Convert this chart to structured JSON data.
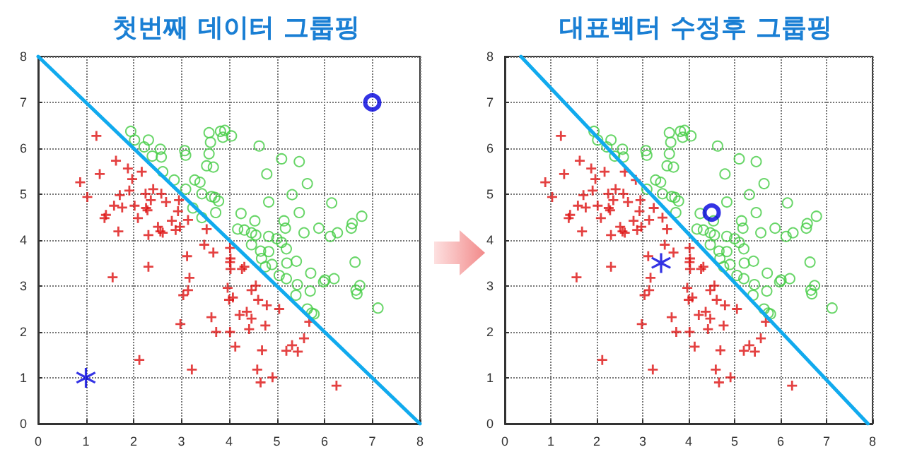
{
  "chart_data": [
    {
      "type": "scatter",
      "title": "첫번째 데이터 그룹핑",
      "xlim": [
        0,
        8
      ],
      "ylim": [
        0,
        8
      ],
      "xticks": [
        0,
        1,
        2,
        3,
        4,
        5,
        6,
        7,
        8
      ],
      "yticks": [
        0,
        1,
        2,
        3,
        4,
        5,
        6,
        7,
        8
      ],
      "grid": true,
      "series": [
        {
          "type": "scatter",
          "marker": "cross",
          "color": "#dd1111",
          "x": [
            1.22,
            1.63,
            1.29,
            1.88,
            0.88,
            1.03,
            2.17,
            1.97,
            1.91,
            1.71,
            1.59,
            1.76,
            1.42,
            1.39,
            2.02,
            2.25,
            2.41,
            2.58,
            2.36,
            2.26,
            2.09,
            2.29,
            2.68,
            2.95,
            2.93,
            2.8,
            3.14,
            2.97,
            2.51,
            2.56,
            2.31,
            2.61,
            2.88,
            1.68,
            3.12,
            3.48,
            3.67,
            3.53,
            1.56,
            2.31,
            3.17,
            3.14,
            3.04,
            3.97,
            4.0,
            4.02,
            4.02,
            2.98,
            3.63,
            3.73,
            4.02,
            2.12,
            3.22,
            4.03,
            4.27,
            4.32,
            4.03,
            4.08,
            4.22,
            4.37,
            4.47,
            4.56,
            4.61,
            4.47,
            4.79,
            4.76,
            5.05,
            4.42,
            4.13,
            4.69,
            5.2,
            5.32,
            5.44,
            5.57,
            5.68,
            4.59,
            4.66,
            4.91,
            6.25
          ],
          "values": [
            6.27,
            5.73,
            5.44,
            5.56,
            5.26,
            4.94,
            5.49,
            5.33,
            5.08,
            4.98,
            4.75,
            4.71,
            4.55,
            4.48,
            4.75,
            5.01,
            5.11,
            5.01,
            4.87,
            4.7,
            4.48,
            4.65,
            4.83,
            4.87,
            4.63,
            4.42,
            4.44,
            4.29,
            4.29,
            4.19,
            4.11,
            4.16,
            4.22,
            4.19,
            3.65,
            3.9,
            3.73,
            4.24,
            3.19,
            3.42,
            3.18,
            2.91,
            2.8,
            2.96,
            2.7,
            3.83,
            3.52,
            2.17,
            2.32,
            2.0,
            2.0,
            1.39,
            1.18,
            3.6,
            3.37,
            3.42,
            3.37,
            2.75,
            2.37,
            2.44,
            2.91,
            3.01,
            2.7,
            2.29,
            2.58,
            2.14,
            2.5,
            2.06,
            1.68,
            1.6,
            1.59,
            1.71,
            1.57,
            1.86,
            2.22,
            1.18,
            0.9,
            1.01,
            0.83
          ]
        },
        {
          "type": "scatter",
          "marker": "circle",
          "color": "#44cc44",
          "x": [
            1.94,
            2.02,
            2.31,
            2.22,
            2.39,
            2.56,
            2.58,
            2.61,
            2.85,
            3.07,
            3.09,
            3.28,
            3.39,
            3.09,
            3.58,
            3.61,
            3.82,
            3.87,
            3.53,
            3.58,
            3.63,
            3.7,
            3.78,
            3.43,
            3.72,
            3.24,
            3.43,
            3.91,
            4.05,
            3.67,
            4.63,
            5.1,
            5.47,
            4.79,
            5.64,
            4.83,
            5.32,
            6.15,
            4.25,
            4.54,
            5.47,
            5.15,
            5.18,
            5.88,
            6.58,
            6.56,
            6.78,
            6.27,
            6.12,
            5.57,
            4.18,
            4.32,
            4.47,
            4.56,
            4.83,
            5.0,
            5.1,
            5.2,
            4.47,
            4.66,
            4.83,
            4.68,
            4.9,
            4.76,
            5.21,
            5.41,
            5.05,
            5.2,
            5.43,
            5.4,
            5.71,
            5.7,
            5.98,
            6.01,
            6.2,
            6.64,
            6.66,
            6.68,
            6.74,
            7.12,
            5.64,
            5.73,
            5.78
          ],
          "values": [
            6.37,
            6.18,
            6.18,
            6.03,
            5.83,
            5.98,
            5.81,
            5.49,
            5.31,
            5.95,
            5.85,
            5.31,
            5.26,
            5.11,
            6.34,
            6.13,
            6.37,
            6.24,
            5.62,
            5.88,
            4.95,
            4.93,
            4.85,
            5.01,
            4.6,
            4.7,
            4.49,
            6.39,
            6.27,
            5.59,
            6.05,
            5.77,
            5.71,
            5.44,
            5.23,
            4.83,
            4.99,
            4.81,
            4.58,
            4.42,
            4.6,
            4.42,
            4.26,
            4.26,
            4.36,
            4.26,
            4.52,
            4.16,
            4.08,
            4.16,
            4.24,
            4.22,
            4.16,
            4.11,
            4.08,
            4.03,
            3.95,
            3.81,
            3.9,
            3.76,
            3.75,
            3.6,
            3.47,
            3.42,
            3.5,
            3.54,
            3.23,
            3.16,
            3.03,
            2.8,
            3.28,
            2.89,
            3.09,
            3.13,
            3.16,
            3.52,
            2.91,
            2.83,
            3.01,
            2.52,
            2.5,
            2.41,
            2.39
          ]
        },
        {
          "type": "line",
          "marker": "none",
          "color": "#11aaee",
          "x": [
            0,
            8
          ],
          "values": [
            8,
            0
          ]
        },
        {
          "type": "scatter",
          "marker": "star",
          "color": "#0000dd",
          "x": [
            1
          ],
          "values": [
            1
          ]
        },
        {
          "type": "scatter",
          "marker": "circle",
          "color": "#0000dd",
          "x": [
            7
          ],
          "values": [
            7
          ]
        }
      ]
    },
    {
      "type": "scatter",
      "title": "대표벡터 수정후 그룹핑",
      "xlim": [
        0,
        8
      ],
      "ylim": [
        0,
        8
      ],
      "xticks": [
        0,
        1,
        2,
        3,
        4,
        5,
        6,
        7,
        8
      ],
      "yticks": [
        0,
        1,
        2,
        3,
        4,
        5,
        6,
        7,
        8
      ],
      "grid": true,
      "series": [
        {
          "type": "scatter",
          "marker": "cross",
          "color": "#dd1111",
          "x": [
            1.22,
            1.63,
            1.29,
            1.88,
            0.88,
            1.03,
            2.17,
            1.97,
            1.91,
            1.71,
            1.59,
            1.76,
            1.42,
            1.39,
            2.02,
            2.25,
            2.41,
            2.58,
            2.36,
            2.26,
            2.09,
            2.29,
            2.68,
            2.95,
            2.93,
            2.8,
            3.14,
            2.97,
            2.51,
            2.56,
            2.31,
            2.61,
            2.88,
            1.68,
            3.12,
            3.48,
            3.67,
            3.53,
            1.56,
            2.31,
            3.17,
            3.14,
            3.04,
            3.97,
            4.0,
            4.02,
            4.02,
            2.98,
            3.63,
            3.73,
            4.02,
            2.12,
            3.22,
            4.03,
            4.27,
            4.32,
            4.03,
            4.08,
            4.22,
            4.37,
            4.47,
            4.56,
            4.61,
            4.47,
            4.79,
            4.76,
            5.05,
            4.42,
            4.13,
            4.69,
            5.2,
            5.32,
            5.44,
            5.57,
            5.68,
            4.59,
            4.66,
            4.91,
            6.25,
            2.61,
            2.85,
            3.24,
            3.43
          ],
          "values": [
            6.27,
            5.73,
            5.44,
            5.56,
            5.26,
            4.94,
            5.49,
            5.33,
            5.08,
            4.98,
            4.75,
            4.71,
            4.55,
            4.48,
            4.75,
            5.01,
            5.11,
            5.01,
            4.87,
            4.7,
            4.48,
            4.65,
            4.83,
            4.87,
            4.63,
            4.42,
            4.44,
            4.29,
            4.29,
            4.19,
            4.11,
            4.16,
            4.22,
            4.19,
            3.65,
            3.9,
            3.73,
            4.24,
            3.19,
            3.42,
            3.18,
            2.91,
            2.8,
            2.96,
            2.7,
            3.83,
            3.52,
            2.17,
            2.32,
            2.0,
            2.0,
            1.39,
            1.18,
            3.6,
            3.37,
            3.42,
            3.37,
            2.75,
            2.37,
            2.44,
            2.91,
            3.01,
            2.7,
            2.29,
            2.58,
            2.14,
            2.5,
            2.06,
            1.68,
            1.6,
            1.59,
            1.71,
            1.57,
            1.86,
            2.22,
            1.18,
            0.9,
            1.01,
            0.83,
            5.49,
            5.31,
            4.7,
            4.49
          ]
        },
        {
          "type": "scatter",
          "marker": "circle",
          "color": "#44cc44",
          "x": [
            1.94,
            2.02,
            2.31,
            2.22,
            2.39,
            2.56,
            2.58,
            3.07,
            3.09,
            3.28,
            3.39,
            3.09,
            3.58,
            3.61,
            3.82,
            3.87,
            3.53,
            3.58,
            3.63,
            3.7,
            3.78,
            3.43,
            3.72,
            3.91,
            4.05,
            3.67,
            4.63,
            5.1,
            5.47,
            4.79,
            5.64,
            4.83,
            5.32,
            6.15,
            4.25,
            4.54,
            5.47,
            5.15,
            5.18,
            5.88,
            6.58,
            6.56,
            6.78,
            6.27,
            6.12,
            5.57,
            4.18,
            4.32,
            4.47,
            4.56,
            4.83,
            5.0,
            5.1,
            5.2,
            4.47,
            4.66,
            4.83,
            4.68,
            4.9,
            4.76,
            5.21,
            5.41,
            5.05,
            5.2,
            5.43,
            5.4,
            5.71,
            5.7,
            5.98,
            6.01,
            6.2,
            6.64,
            6.66,
            6.68,
            6.74,
            7.12,
            5.64,
            5.73,
            5.78
          ],
          "values": [
            6.37,
            6.18,
            6.18,
            6.03,
            5.83,
            5.98,
            5.81,
            5.95,
            5.85,
            5.31,
            5.26,
            5.11,
            6.34,
            6.13,
            6.37,
            6.24,
            5.62,
            5.88,
            4.95,
            4.93,
            4.85,
            5.01,
            4.6,
            6.39,
            6.27,
            5.59,
            6.05,
            5.77,
            5.71,
            5.44,
            5.23,
            4.83,
            4.99,
            4.81,
            4.58,
            4.42,
            4.6,
            4.42,
            4.26,
            4.26,
            4.36,
            4.26,
            4.52,
            4.16,
            4.08,
            4.16,
            4.24,
            4.22,
            4.16,
            4.11,
            4.08,
            4.03,
            3.95,
            3.81,
            3.9,
            3.76,
            3.75,
            3.6,
            3.47,
            3.42,
            3.5,
            3.54,
            3.23,
            3.16,
            3.03,
            2.8,
            3.28,
            2.89,
            3.09,
            3.13,
            3.16,
            3.52,
            2.91,
            2.83,
            3.01,
            2.52,
            2.5,
            2.41,
            2.39
          ]
        },
        {
          "type": "line",
          "marker": "none",
          "color": "#11aaee",
          "x": [
            0.35,
            7.9
          ],
          "values": [
            8,
            0
          ]
        },
        {
          "type": "scatter",
          "marker": "star",
          "color": "#0000dd",
          "x": [
            3.4
          ],
          "values": [
            3.5
          ]
        },
        {
          "type": "scatter",
          "marker": "circle",
          "color": "#0000dd",
          "x": [
            4.5
          ],
          "values": [
            4.6
          ]
        }
      ]
    }
  ]
}
